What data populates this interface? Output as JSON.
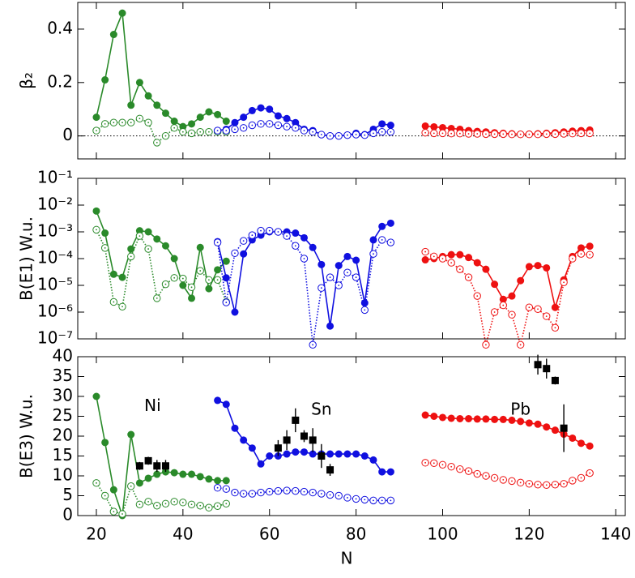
{
  "chart_data": [
    {
      "type": "line",
      "ylabel": "β₂",
      "xlim": [
        15.7,
        142.2
      ],
      "ylim": [
        -0.086,
        0.5
      ],
      "yticks": [
        0,
        0.2,
        0.4
      ],
      "zero_line": true,
      "series": [
        {
          "color": "#2a8a2a",
          "marker": "filled",
          "line": "solid",
          "x": [
            20,
            22,
            24,
            26,
            28,
            30,
            32,
            34,
            36,
            38,
            40,
            42,
            44,
            46,
            48,
            50
          ],
          "values": [
            0.07,
            0.21,
            0.38,
            0.46,
            0.115,
            0.2,
            0.15,
            0.115,
            0.085,
            0.055,
            0.035,
            0.045,
            0.07,
            0.09,
            0.08,
            0.055
          ]
        },
        {
          "color": "#2a8a2a",
          "marker": "open",
          "line": "dotted",
          "x": [
            20,
            22,
            24,
            26,
            28,
            30,
            32,
            34,
            36,
            38,
            40,
            42,
            44,
            46,
            48,
            50
          ],
          "values": [
            0.02,
            0.045,
            0.05,
            0.05,
            0.05,
            0.065,
            0.05,
            -0.025,
            0.0,
            0.03,
            0.015,
            0.01,
            0.015,
            0.015,
            0.015,
            0.015
          ]
        },
        {
          "color": "#1010e0",
          "marker": "filled",
          "line": "solid",
          "x": [
            48,
            50,
            52,
            54,
            56,
            58,
            60,
            62,
            64,
            66,
            68,
            70,
            72,
            74,
            76,
            78,
            80,
            82,
            84,
            86,
            88
          ],
          "values": [
            0.02,
            0.025,
            0.05,
            0.07,
            0.095,
            0.105,
            0.1,
            0.075,
            0.065,
            0.05,
            0.025,
            0.02,
            0.005,
            0,
            0,
            0.003,
            0.01,
            0.005,
            0.025,
            0.045,
            0.04
          ]
        },
        {
          "color": "#1010e0",
          "marker": "open",
          "line": "dotted",
          "x": [
            48,
            50,
            52,
            54,
            56,
            58,
            60,
            62,
            64,
            66,
            68,
            70,
            72,
            74,
            76,
            78,
            80,
            82,
            84,
            86,
            88
          ],
          "values": [
            0.02,
            0.02,
            0.025,
            0.03,
            0.04,
            0.045,
            0.045,
            0.04,
            0.035,
            0.03,
            0.02,
            0.015,
            0.005,
            0,
            0,
            0.003,
            0.005,
            0.003,
            0.01,
            0.015,
            0.015
          ]
        },
        {
          "color": "#ee1111",
          "marker": "filled",
          "line": "solid",
          "x": [
            96,
            98,
            100,
            102,
            104,
            106,
            108,
            110,
            112,
            114,
            116,
            118,
            120,
            122,
            124,
            126,
            128,
            130,
            132,
            134
          ],
          "values": [
            0.037,
            0.034,
            0.031,
            0.028,
            0.025,
            0.02,
            0.017,
            0.015,
            0.012,
            0.01,
            0.008,
            0.006,
            0.007,
            0.008,
            0.01,
            0.012,
            0.015,
            0.018,
            0.02,
            0.022
          ]
        },
        {
          "color": "#ee1111",
          "marker": "open",
          "line": "dotted",
          "x": [
            96,
            98,
            100,
            102,
            104,
            106,
            108,
            110,
            112,
            114,
            116,
            118,
            120,
            122,
            124,
            126,
            128,
            130,
            132,
            134
          ],
          "values": [
            0.012,
            0.01,
            0.01,
            0.009,
            0.009,
            0.008,
            0.008,
            0.007,
            0.007,
            0.007,
            0.006,
            0.006,
            0.006,
            0.006,
            0.007,
            0.007,
            0.008,
            0.009,
            0.01,
            0.01
          ]
        }
      ]
    },
    {
      "type": "line",
      "ylabel": "B(E1) W.u.",
      "log_y": true,
      "xlim": [
        15.7,
        142.2
      ],
      "ylim": [
        1e-07,
        0.1
      ],
      "yticks": [
        {
          "value": 1e-07,
          "label": "10⁻⁷"
        },
        {
          "value": 1e-06,
          "label": "10⁻⁶"
        },
        {
          "value": 1e-05,
          "label": "10⁻⁵"
        },
        {
          "value": 0.0001,
          "label": "10⁻⁴"
        },
        {
          "value": 0.001,
          "label": "10⁻³"
        },
        {
          "value": 0.01,
          "label": "10⁻²"
        },
        {
          "value": 0.1,
          "label": "10⁻¹"
        }
      ],
      "series": [
        {
          "color": "#2a8a2a",
          "marker": "filled",
          "line": "solid",
          "x": [
            20,
            22,
            24,
            26,
            28,
            30,
            32,
            34,
            36,
            38,
            40,
            42,
            44,
            46,
            48,
            50
          ],
          "values": [
            0.006,
            0.0009,
            2.6e-05,
            2e-05,
            0.00023,
            0.0011,
            0.001,
            0.00054,
            0.0003,
            0.0001,
            1e-05,
            3.3e-06,
            0.00026,
            7.5e-06,
            3.8e-05,
            8e-05
          ]
        },
        {
          "color": "#2a8a2a",
          "marker": "open",
          "line": "dotted",
          "x": [
            20,
            22,
            24,
            26,
            28,
            30,
            32,
            34,
            36,
            38,
            40,
            42,
            44,
            46,
            48,
            50
          ],
          "values": [
            0.0012,
            0.00025,
            2.4e-06,
            1.6e-06,
            0.00012,
            0.0007,
            0.00023,
            3.3e-06,
            1.1e-05,
            1.9e-05,
            1.8e-05,
            8.5e-06,
            3.5e-05,
            1.6e-05,
            1.6e-05,
            2.4e-06
          ]
        },
        {
          "color": "#1010e0",
          "marker": "filled",
          "line": "solid",
          "x": [
            48,
            50,
            52,
            54,
            56,
            58,
            60,
            62,
            64,
            66,
            68,
            70,
            72,
            74,
            76,
            78,
            80,
            82,
            84,
            86,
            88
          ],
          "values": [
            0.00043,
            1.9e-05,
            1e-06,
            0.00015,
            0.0005,
            0.00075,
            0.001,
            0.001,
            0.001,
            0.0009,
            0.0006,
            0.00026,
            6e-05,
            3e-07,
            5.5e-05,
            0.00012,
            8.7e-05,
            2.2e-06,
            0.0005,
            0.0016,
            0.0021
          ]
        },
        {
          "color": "#1010e0",
          "marker": "open",
          "line": "dotted",
          "x": [
            48,
            50,
            52,
            54,
            56,
            58,
            60,
            62,
            64,
            66,
            68,
            70,
            72,
            74,
            76,
            78,
            80,
            82,
            84,
            86,
            88
          ],
          "values": [
            0.0004,
            2.3e-06,
            0.00016,
            0.00046,
            0.00075,
            0.0011,
            0.0011,
            0.001,
            0.0007,
            0.0003,
            0.0001,
            6e-08,
            8e-06,
            2e-05,
            1e-05,
            3e-05,
            2e-05,
            1.2e-06,
            0.00015,
            0.0005,
            0.0004
          ]
        },
        {
          "color": "#ee1111",
          "marker": "filled",
          "line": "solid",
          "x": [
            96,
            98,
            100,
            102,
            104,
            106,
            108,
            110,
            112,
            114,
            116,
            118,
            120,
            122,
            124,
            126,
            128,
            130,
            132,
            134
          ],
          "values": [
            9e-05,
            0.0001,
            0.00012,
            0.00014,
            0.00014,
            0.00011,
            7e-05,
            4e-05,
            1.1e-05,
            3e-06,
            4e-06,
            1.5e-05,
            5e-05,
            5.5e-05,
            4.5e-05,
            1.5e-06,
            1.6e-05,
            0.00012,
            0.00025,
            0.00029
          ]
        },
        {
          "color": "#ee1111",
          "marker": "open",
          "line": "dotted",
          "x": [
            96,
            98,
            100,
            102,
            104,
            106,
            108,
            110,
            112,
            114,
            116,
            118,
            120,
            122,
            124,
            126,
            128,
            130,
            132,
            134
          ],
          "values": [
            0.00018,
            0.00012,
            0.0001,
            7e-05,
            4e-05,
            2e-05,
            4e-06,
            6e-08,
            1e-06,
            1.8e-06,
            8e-07,
            6e-08,
            1.5e-06,
            1.3e-06,
            7e-07,
            2.6e-07,
            1.3e-05,
            0.0001,
            0.00015,
            0.00014
          ]
        }
      ]
    },
    {
      "type": "line",
      "ylabel": "B(E3) W.u.",
      "xlabel": "N",
      "xlim": [
        15.7,
        142.2
      ],
      "ylim": [
        0,
        40
      ],
      "xticks": [
        20,
        40,
        60,
        80,
        100,
        120,
        140
      ],
      "yticks": [
        0,
        5,
        10,
        15,
        20,
        25,
        30,
        35,
        40
      ],
      "annotations": [
        "Ni",
        "Sn",
        "Pb"
      ],
      "series": [
        {
          "color": "#2a8a2a",
          "marker": "filled",
          "line": "solid",
          "x": [
            20,
            22,
            24,
            26,
            28,
            30,
            32,
            34,
            36,
            38,
            40,
            42,
            44,
            46,
            48,
            50
          ],
          "values": [
            30,
            18.4,
            6.5,
            0,
            20.4,
            8.2,
            9.4,
            10.4,
            11,
            10.8,
            10.4,
            10.4,
            9.8,
            9.2,
            8.8,
            8.8
          ]
        },
        {
          "color": "#2a8a2a",
          "marker": "open",
          "line": "dotted",
          "x": [
            20,
            22,
            24,
            26,
            28,
            30,
            32,
            34,
            36,
            38,
            40,
            42,
            44,
            46,
            48,
            50
          ],
          "values": [
            8.2,
            5,
            1,
            0.4,
            7.4,
            2.8,
            3.5,
            2.5,
            3,
            3.5,
            3.3,
            2.8,
            2.5,
            2,
            2.4,
            3
          ]
        },
        {
          "color": "#1010e0",
          "marker": "filled",
          "line": "solid",
          "x": [
            48,
            50,
            52,
            54,
            56,
            58,
            60,
            62,
            64,
            66,
            68,
            70,
            72,
            74,
            76,
            78,
            80,
            82,
            84,
            86,
            88
          ],
          "values": [
            29,
            28,
            22,
            19,
            17,
            13,
            15,
            15,
            15.5,
            16,
            16,
            15.5,
            15.5,
            15.5,
            15.5,
            15.5,
            15.5,
            15,
            14,
            11,
            11
          ]
        },
        {
          "color": "#1010e0",
          "marker": "open",
          "line": "dotted",
          "x": [
            48,
            50,
            52,
            54,
            56,
            58,
            60,
            62,
            64,
            66,
            68,
            70,
            72,
            74,
            76,
            78,
            80,
            82,
            84,
            86,
            88
          ],
          "values": [
            7,
            6.7,
            5.8,
            5.5,
            5.5,
            5.8,
            6,
            6.2,
            6.3,
            6.2,
            6,
            5.8,
            5.5,
            5.2,
            5,
            4.5,
            4.2,
            4,
            3.8,
            3.8,
            3.8
          ]
        },
        {
          "color": "#ee1111",
          "marker": "filled",
          "line": "solid",
          "x": [
            96,
            98,
            100,
            102,
            104,
            106,
            108,
            110,
            112,
            114,
            116,
            118,
            120,
            122,
            124,
            126,
            128,
            130,
            132,
            134
          ],
          "values": [
            25.3,
            25,
            24.7,
            24.5,
            24.4,
            24.4,
            24.3,
            24.3,
            24.2,
            24.2,
            24,
            23.7,
            23.3,
            23,
            22.3,
            21.5,
            20.5,
            19.5,
            18.2,
            17.5
          ]
        },
        {
          "color": "#ee1111",
          "marker": "open",
          "line": "dotted",
          "x": [
            96,
            98,
            100,
            102,
            104,
            106,
            108,
            110,
            112,
            114,
            116,
            118,
            120,
            122,
            124,
            126,
            128,
            130,
            132,
            134
          ],
          "values": [
            13.3,
            13.2,
            12.8,
            12.3,
            11.7,
            11.2,
            10.5,
            10,
            9.5,
            9,
            8.7,
            8.3,
            8,
            7.8,
            7.7,
            7.8,
            8,
            8.8,
            9.5,
            10.7
          ]
        },
        {
          "color": "#000000",
          "marker": "square",
          "line": "none",
          "x": [
            30,
            32,
            34,
            36,
            62,
            64,
            66,
            68,
            70,
            72,
            74,
            122,
            124,
            126,
            128
          ],
          "values": [
            12.5,
            13.8,
            12.5,
            12.5,
            17,
            19,
            24,
            20,
            19,
            15,
            11.5,
            38,
            37,
            34,
            22
          ],
          "errors": [
            1,
            1,
            1.5,
            1.5,
            2,
            2.5,
            3,
            1.5,
            3,
            3,
            1.5,
            2.5,
            2.5,
            1,
            6
          ]
        }
      ]
    }
  ]
}
